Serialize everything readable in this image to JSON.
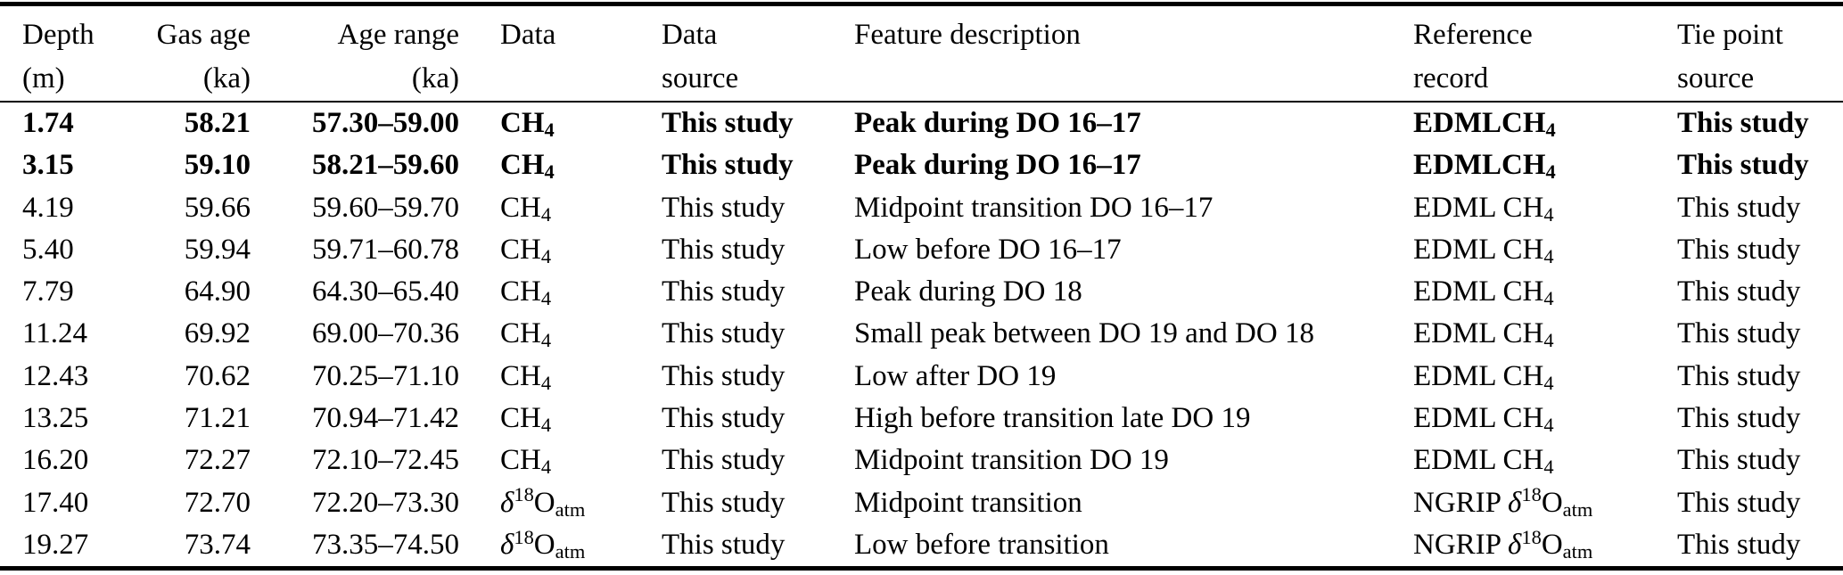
{
  "colors": {
    "background": "#ffffff",
    "text": "#000000",
    "rule": "#000000"
  },
  "table": {
    "columns": [
      {
        "id": "depth",
        "line1": "Depth",
        "line2": "(m)",
        "align": "left"
      },
      {
        "id": "gas_age",
        "line1": "Gas age",
        "line2": "(ka)",
        "align": "right"
      },
      {
        "id": "age_range",
        "line1": "Age range",
        "line2": "(ka)",
        "align": "right"
      },
      {
        "id": "data",
        "line1": "Data",
        "line2": "",
        "align": "left"
      },
      {
        "id": "data_source",
        "line1": "Data",
        "line2": "source",
        "align": "left"
      },
      {
        "id": "feature",
        "line1": "Feature description",
        "line2": "",
        "align": "left"
      },
      {
        "id": "reference",
        "line1": "Reference",
        "line2": "record",
        "align": "left"
      },
      {
        "id": "tie_source",
        "line1": "Tie point",
        "line2": "source",
        "align": "left"
      }
    ],
    "rows": [
      {
        "depth": "1.74",
        "gas_age": "58.21",
        "age_range": "57.30–59.00",
        "data": "CH4",
        "data_source": "This study",
        "feature": "Peak during DO 16–17",
        "reference": "EDMLCH4",
        "tie_source": "This study",
        "bold": true
      },
      {
        "depth": "3.15",
        "gas_age": "59.10",
        "age_range": "58.21–59.60",
        "data": "CH4",
        "data_source": "This study",
        "feature": "Peak during DO 16–17",
        "reference": "EDMLCH4",
        "tie_source": "This study",
        "bold": true
      },
      {
        "depth": "4.19",
        "gas_age": "59.66",
        "age_range": "59.60–59.70",
        "data": "CH4",
        "data_source": "This study",
        "feature": "Midpoint transition DO 16–17",
        "reference": "EDML CH4",
        "tie_source": "This study",
        "bold": false
      },
      {
        "depth": "5.40",
        "gas_age": "59.94",
        "age_range": "59.71–60.78",
        "data": "CH4",
        "data_source": "This study",
        "feature": "Low before DO 16–17",
        "reference": "EDML CH4",
        "tie_source": "This study",
        "bold": false
      },
      {
        "depth": "7.79",
        "gas_age": "64.90",
        "age_range": "64.30–65.40",
        "data": "CH4",
        "data_source": "This study",
        "feature": "Peak during DO 18",
        "reference": "EDML CH4",
        "tie_source": "This study",
        "bold": false
      },
      {
        "depth": "11.24",
        "gas_age": "69.92",
        "age_range": "69.00–70.36",
        "data": "CH4",
        "data_source": "This study",
        "feature": "Small peak between DO 19 and DO 18",
        "reference": "EDML CH4",
        "tie_source": "This study",
        "bold": false
      },
      {
        "depth": "12.43",
        "gas_age": "70.62",
        "age_range": "70.25–71.10",
        "data": "CH4",
        "data_source": "This study",
        "feature": "Low after DO 19",
        "reference": "EDML CH4",
        "tie_source": "This study",
        "bold": false
      },
      {
        "depth": "13.25",
        "gas_age": "71.21",
        "age_range": "70.94–71.42",
        "data": "CH4",
        "data_source": "This study",
        "feature": "High before transition late DO 19",
        "reference": "EDML CH4",
        "tie_source": "This study",
        "bold": false
      },
      {
        "depth": "16.20",
        "gas_age": "72.27",
        "age_range": "72.10–72.45",
        "data": "CH4",
        "data_source": "This study",
        "feature": "Midpoint transition DO 19",
        "reference": "EDML CH4",
        "tie_source": "This study",
        "bold": false
      },
      {
        "depth": "17.40",
        "gas_age": "72.70",
        "age_range": "72.20–73.30",
        "data": "δ18Oatm",
        "data_source": "This study",
        "feature": "Midpoint transition",
        "reference": "NGRIP δ18Oatm",
        "tie_source": "This study",
        "bold": false
      },
      {
        "depth": "19.27",
        "gas_age": "73.74",
        "age_range": "73.35–74.50",
        "data": "δ18Oatm",
        "data_source": "This study",
        "feature": "Low before transition",
        "reference": "NGRIP δ18Oatm",
        "tie_source": "This study",
        "bold": false
      }
    ]
  }
}
